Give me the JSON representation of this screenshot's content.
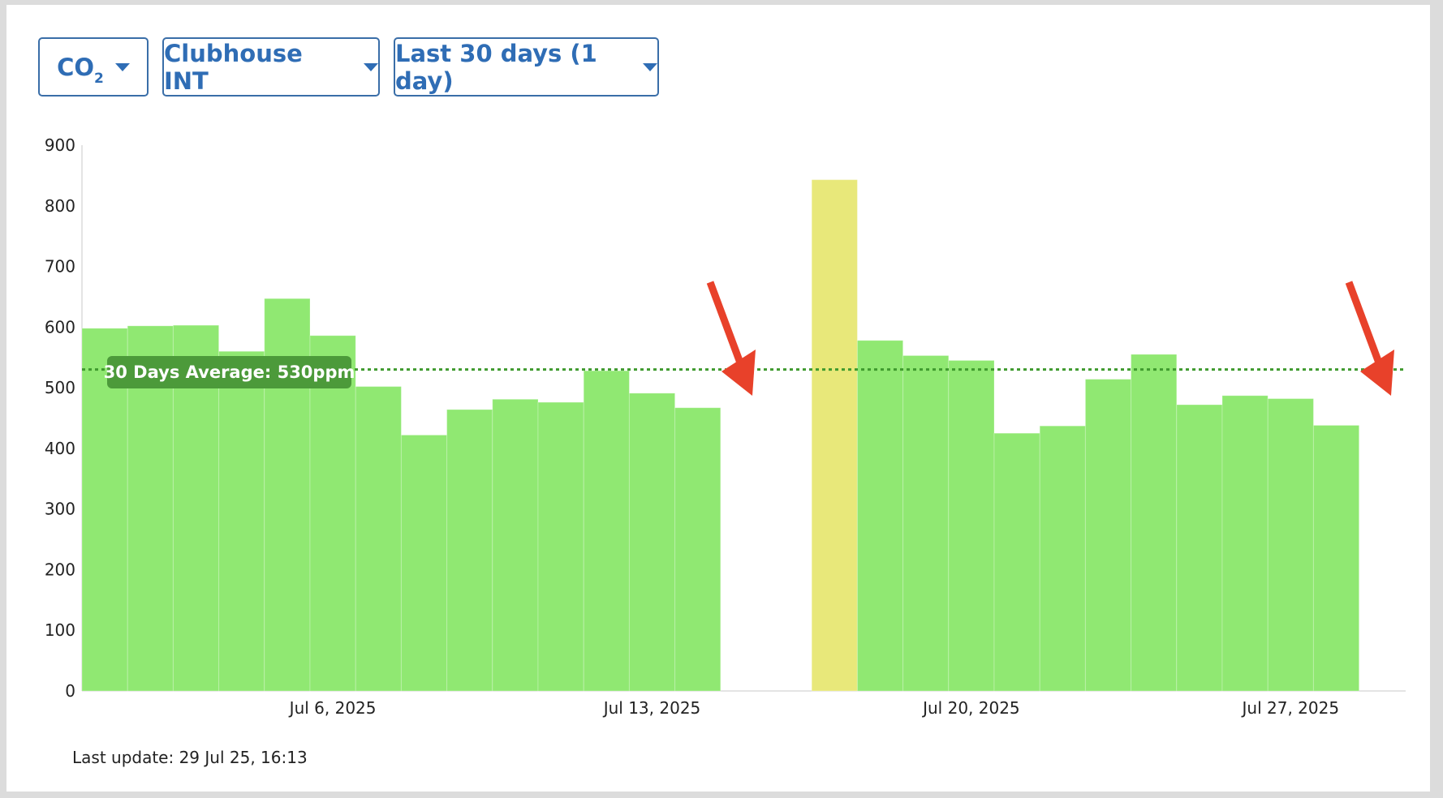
{
  "selectors": {
    "metric_main": "CO",
    "metric_sub": "2",
    "location": "Clubhouse INT",
    "range": "Last 30 days (1 day)"
  },
  "average_label": "30 Days Average: 530ppm",
  "last_update": "Last update: 29 Jul 25, 16:13",
  "colors": {
    "bar_good": "#90e872",
    "bar_moderate": "#e8e87a",
    "average_line": "#3f9a2e",
    "average_badge": "#4c9a3a",
    "annotation_arrow": "#e8412a",
    "accent": "#2f6db5"
  },
  "chart_data": {
    "type": "bar",
    "x": [
      "Jul 1, 2025",
      "Jul 2, 2025",
      "Jul 3, 2025",
      "Jul 4, 2025",
      "Jul 5, 2025",
      "Jul 6, 2025",
      "Jul 7, 2025",
      "Jul 8, 2025",
      "Jul 9, 2025",
      "Jul 10, 2025",
      "Jul 11, 2025",
      "Jul 12, 2025",
      "Jul 13, 2025",
      "Jul 14, 2025",
      "Jul 15, 2025",
      "Jul 16, 2025",
      "Jul 17, 2025",
      "Jul 18, 2025",
      "Jul 19, 2025",
      "Jul 20, 2025",
      "Jul 21, 2025",
      "Jul 22, 2025",
      "Jul 23, 2025",
      "Jul 24, 2025",
      "Jul 25, 2025",
      "Jul 26, 2025",
      "Jul 27, 2025",
      "Jul 28, 2025",
      "Jul 29, 2025"
    ],
    "values": [
      598,
      602,
      603,
      560,
      647,
      586,
      502,
      422,
      464,
      481,
      476,
      528,
      491,
      467,
      null,
      null,
      843,
      578,
      553,
      545,
      425,
      437,
      514,
      555,
      472,
      487,
      482,
      438,
      null
    ],
    "bar_levels": [
      "good",
      "good",
      "good",
      "good",
      "good",
      "good",
      "good",
      "good",
      "good",
      "good",
      "good",
      "good",
      "good",
      "good",
      null,
      null,
      "moderate",
      "good",
      "good",
      "good",
      "good",
      "good",
      "good",
      "good",
      "good",
      "good",
      "good",
      "good",
      null
    ],
    "average": 530,
    "ylim": [
      0,
      900
    ],
    "yticks": [
      0,
      100,
      200,
      300,
      400,
      500,
      600,
      700,
      800,
      900
    ],
    "xticks": [
      "Jul 6, 2025",
      "Jul 13, 2025",
      "Jul 20, 2025",
      "Jul 27, 2025"
    ],
    "xlabel": "",
    "ylabel": "",
    "grid": false,
    "annotations": [
      "arrow",
      "arrow"
    ]
  }
}
